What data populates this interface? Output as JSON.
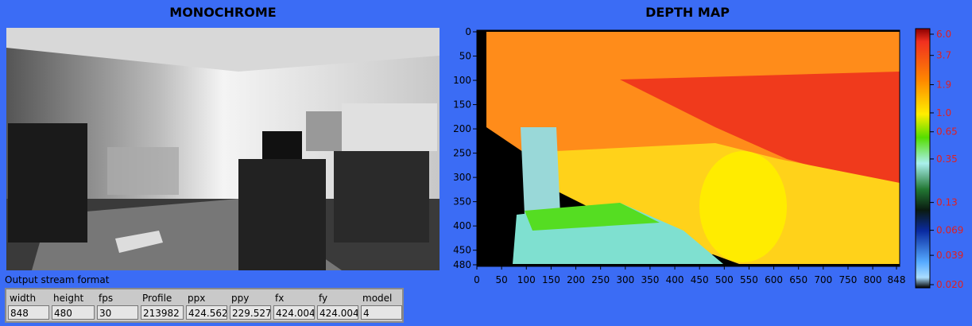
{
  "left_panel": {
    "title": "MONOCHROME"
  },
  "right_panel": {
    "title": "DEPTH MAP",
    "x_ticks": [
      0,
      50,
      100,
      150,
      200,
      250,
      300,
      350,
      400,
      450,
      500,
      550,
      600,
      650,
      700,
      750,
      800,
      848
    ],
    "y_ticks": [
      0,
      50,
      100,
      150,
      200,
      250,
      300,
      350,
      400,
      450,
      480
    ],
    "colorbar_ticks": [
      {
        "value": 6,
        "label": "6.0"
      },
      3.7,
      1.9,
      {
        "value": 1,
        "label": "1.0"
      },
      0.65,
      0.35,
      0.13,
      0.069,
      0.039,
      {
        "value": 0.02,
        "label": "0.020"
      }
    ]
  },
  "stream_format": {
    "caption": "Output stream format",
    "columns": [
      {
        "name": "width",
        "value": "848"
      },
      {
        "name": "height",
        "value": "480"
      },
      {
        "name": "fps",
        "value": "30"
      },
      {
        "name": "Profile",
        "value": "213982"
      },
      {
        "name": "ppx",
        "value": "424.562"
      },
      {
        "name": "ppy",
        "value": "229.527"
      },
      {
        "name": "fx",
        "value": "424.004"
      },
      {
        "name": "fy",
        "value": "424.004"
      },
      {
        "name": "model",
        "value": "4"
      }
    ]
  }
}
